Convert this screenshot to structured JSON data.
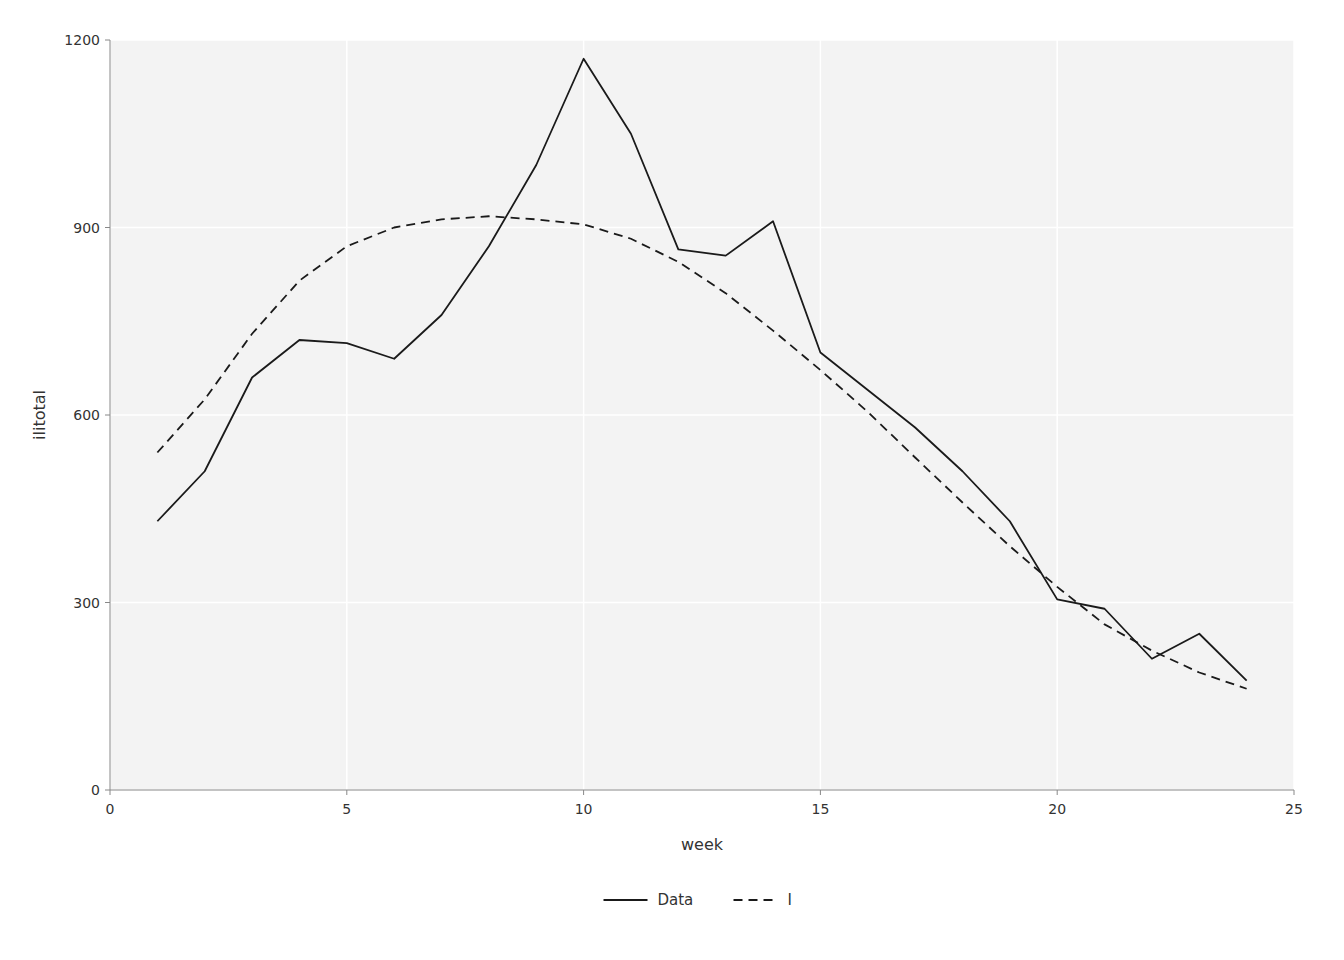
{
  "chart_data": {
    "type": "line",
    "x_label": "week",
    "y_label": "ilitotal",
    "x": [
      1,
      2,
      3,
      4,
      5,
      6,
      7,
      8,
      9,
      10,
      11,
      12,
      13,
      14,
      15,
      16,
      17,
      18,
      19,
      20,
      21,
      22,
      23,
      24
    ],
    "series": [
      {
        "name": "Data",
        "color": "#1a1a1a",
        "line_style": "solid",
        "values": [
          430,
          510,
          660,
          720,
          715,
          690,
          760,
          870,
          1000,
          1170,
          1050,
          865,
          855,
          910,
          700,
          640,
          580,
          510,
          430,
          305,
          290,
          210,
          250,
          175
        ]
      },
      {
        "name": "I",
        "color": "#1a1a1a",
        "line_style": "dashed",
        "values": [
          540,
          625,
          730,
          815,
          870,
          900,
          913,
          918,
          913,
          905,
          882,
          845,
          795,
          735,
          672,
          605,
          532,
          460,
          390,
          325,
          265,
          223,
          188,
          162
        ]
      }
    ],
    "xlim": [
      0,
      25
    ],
    "ylim": [
      0,
      1200
    ],
    "xticks": [
      0,
      5,
      10,
      15,
      20,
      25
    ],
    "yticks": [
      0,
      300,
      600,
      900,
      1200
    ],
    "grid": true,
    "legend": "bottom"
  }
}
